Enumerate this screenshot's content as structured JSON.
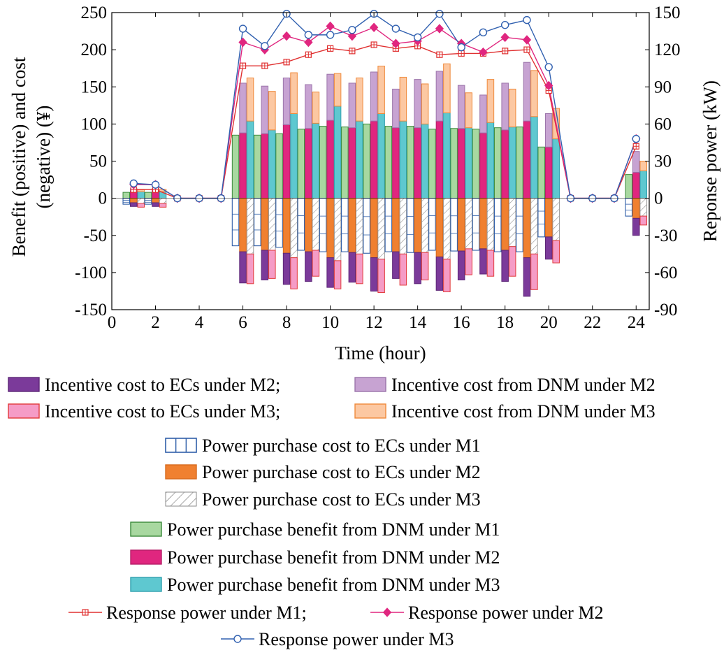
{
  "chart_data": {
    "type": "bar",
    "xlabel": "Time (hour)",
    "ylabel_left": "Benefit (positive) and cost\n(negative) (¥)",
    "ylabel_right": "Reponse power (kW)",
    "xlim": [
      0,
      24.6
    ],
    "xticks": [
      0,
      2,
      4,
      6,
      8,
      10,
      12,
      14,
      16,
      18,
      20,
      22,
      24
    ],
    "ylim_left": [
      -150,
      250
    ],
    "yticks_left": [
      -150,
      -100,
      -50,
      0,
      50,
      100,
      150,
      200,
      250
    ],
    "ylim_right": [
      -90,
      150
    ],
    "yticks_right": [
      -90,
      -60,
      -30,
      0,
      30,
      60,
      90,
      120,
      150
    ],
    "hours": [
      1,
      2,
      3,
      4,
      5,
      6,
      7,
      8,
      9,
      10,
      11,
      12,
      13,
      14,
      15,
      16,
      17,
      18,
      19,
      20,
      21,
      22,
      23,
      24
    ],
    "bar_series": [
      {
        "name": "Power purchase benefit from DNM under M1",
        "group": "M1",
        "values": [
          8,
          8,
          0,
          0,
          0,
          85,
          85,
          87,
          93,
          97,
          96,
          100,
          97,
          97,
          93,
          94,
          93,
          95,
          96,
          69,
          0,
          0,
          0,
          32
        ]
      },
      {
        "name": "Power purchase cost to ECs under M1",
        "group": "M1",
        "values": [
          -8,
          -8,
          0,
          0,
          0,
          -64,
          -64,
          -66,
          -70,
          -72,
          -72,
          -74,
          -72,
          -73,
          -70,
          -71,
          -70,
          -72,
          -72,
          -52,
          0,
          0,
          0,
          -24
        ]
      },
      {
        "name": "Power purchase benefit from DNM under M2",
        "group": "M2",
        "values": [
          10,
          10,
          0,
          0,
          0,
          88,
          87,
          99,
          94,
          105,
          95,
          104,
          95,
          95,
          104,
          94,
          88,
          92,
          104,
          69,
          0,
          0,
          0,
          35
        ]
      },
      {
        "name": "Incentive cost from DNM under M2",
        "group": "M2",
        "values": [
          3,
          3,
          0,
          0,
          0,
          67,
          64,
          63,
          59,
          62,
          60,
          66,
          52,
          65,
          67,
          58,
          51,
          63,
          79,
          45,
          0,
          0,
          0,
          28
        ]
      },
      {
        "name": "Power purchase cost to ECs under M2",
        "group": "M2",
        "values": [
          -6,
          -6,
          0,
          0,
          0,
          -72,
          -70,
          -74,
          -72,
          -80,
          -73,
          -80,
          -72,
          -73,
          -79,
          -71,
          -68,
          -70,
          -80,
          -52,
          0,
          0,
          0,
          -27
        ]
      },
      {
        "name": "Incentive cost to ECs under M2",
        "group": "M2",
        "values": [
          -5,
          -5,
          0,
          0,
          0,
          -42,
          -40,
          -42,
          -40,
          -40,
          -40,
          -45,
          -36,
          -42,
          -45,
          -39,
          -34,
          -42,
          -52,
          -30,
          0,
          0,
          0,
          -23
        ]
      },
      {
        "name": "Power purchase benefit from DNM under M3",
        "group": "M3",
        "values": [
          9,
          9,
          0,
          0,
          0,
          104,
          92,
          114,
          101,
          124,
          104,
          114,
          104,
          100,
          115,
          95,
          102,
          96,
          110,
          80,
          0,
          0,
          0,
          37
        ]
      },
      {
        "name": "Incentive cost from DNM under M3",
        "group": "M3",
        "values": [
          3,
          3,
          0,
          0,
          0,
          58,
          52,
          55,
          42,
          44,
          58,
          64,
          59,
          54,
          66,
          47,
          58,
          51,
          62,
          41,
          0,
          0,
          0,
          13
        ]
      },
      {
        "name": "Power purchase cost to ECs under M3",
        "group": "M3",
        "values": [
          -7,
          -7,
          0,
          0,
          0,
          -75,
          -70,
          -80,
          -70,
          -84,
          -75,
          -82,
          -75,
          -73,
          -82,
          -68,
          -70,
          -65,
          -75,
          -57,
          0,
          0,
          0,
          -24
        ]
      },
      {
        "name": "Incentive cost to ECs under M3",
        "group": "M3",
        "values": [
          -5,
          -5,
          0,
          0,
          0,
          -40,
          -38,
          -42,
          -35,
          -38,
          -40,
          -45,
          -42,
          -37,
          -44,
          -35,
          -35,
          -40,
          -48,
          -30,
          0,
          0,
          0,
          -12
        ]
      }
    ],
    "line_series": [
      {
        "name": "Response power under M1",
        "marker": "square-plus",
        "values": [
          7,
          7,
          0,
          0,
          0,
          107,
          107,
          110,
          116,
          121,
          119,
          124,
          121,
          123,
          116,
          117,
          117,
          119,
          120,
          87,
          0,
          0,
          0,
          42
        ]
      },
      {
        "name": "Response power under M2",
        "marker": "diamond",
        "values": [
          11,
          11,
          0,
          0,
          0,
          126,
          120,
          131,
          126,
          139,
          131,
          138,
          125,
          127,
          137,
          125,
          118,
          130,
          128,
          91,
          0,
          0,
          0,
          48
        ]
      },
      {
        "name": "Response power under M3",
        "marker": "circle",
        "values": [
          12,
          11,
          0,
          0,
          0,
          137,
          123,
          149,
          132,
          132,
          136,
          149,
          137,
          130,
          149,
          122,
          134,
          140,
          144,
          106,
          0,
          0,
          0,
          48
        ]
      }
    ],
    "colors": {
      "m1_benefit_fill": "#a8d8a0",
      "m1_benefit_stroke": "#3a8a3a",
      "m1_cost_stroke": "#2f5ea8",
      "m2_benefit_fill": "#e0267f",
      "m2_benefit_stroke": "#b51e68",
      "m2_incentive_dnm_fill": "#c7a3d2",
      "m2_incentive_dnm_stroke": "#9b74aa",
      "m2_cost_fill": "#f08030",
      "m2_cost_stroke": "#d76a1c",
      "m2_incentive_ec_fill": "#7b3a9a",
      "m2_incentive_ec_stroke": "#5d2777",
      "m3_benefit_fill": "#5ec8d0",
      "m3_benefit_stroke": "#2fa0ae",
      "m3_incentive_dnm_fill": "#fcc8a2",
      "m3_incentive_dnm_stroke": "#ef8a3c",
      "m3_cost_stroke": "#8a8a8a",
      "m3_incentive_ec_fill": "#f59cc6",
      "m3_incentive_ec_stroke": "#e23a3a",
      "line_m1": "#e03030",
      "line_m2": "#e0267f",
      "line_m3": "#3060b0"
    },
    "legend": [
      [
        "Incentive cost to ECs under M2;",
        "Incentive cost from DNM under M2"
      ],
      [
        "Incentive cost to ECs under M3;",
        "Incentive cost from DNM under M3"
      ],
      [
        "Power purchase cost to ECs under M1"
      ],
      [
        "Power purchase cost to ECs under M2"
      ],
      [
        "Power purchase cost to ECs under M3"
      ],
      [
        "Power purchase benefit from DNM under M1"
      ],
      [
        "Power purchase benefit from DNM under M2"
      ],
      [
        "Power purchase benefit from DNM under M3"
      ],
      [
        "Response power under M1;",
        "Response power under M2"
      ],
      [
        "Response power under M3"
      ]
    ]
  }
}
